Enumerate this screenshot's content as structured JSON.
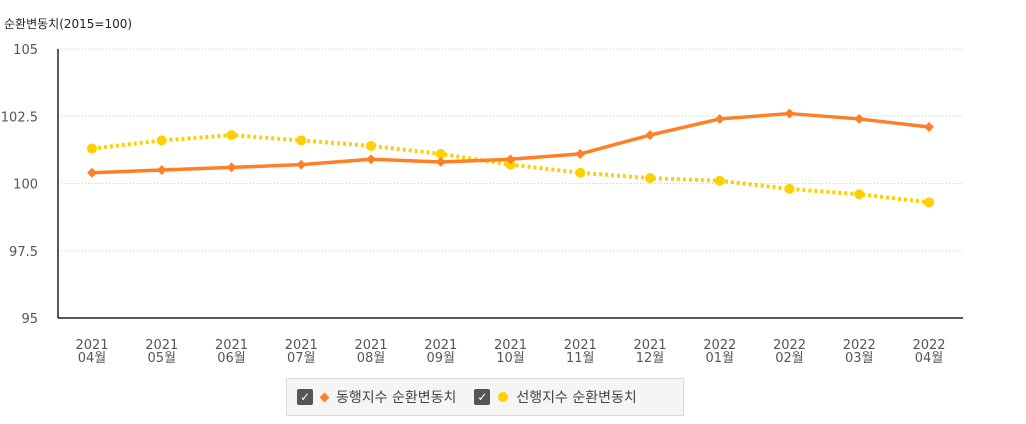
{
  "chart_data": {
    "type": "line",
    "ylabel": "순환변동치(2015=100)",
    "ylim": [
      95,
      105
    ],
    "yticks": [
      "105",
      "102.5",
      "100",
      "97.5",
      "95"
    ],
    "ytick_values": [
      105,
      102.5,
      100,
      97.5,
      95
    ],
    "grid": true,
    "legend_position": "bottom-center",
    "categories": [
      {
        "year": "2021",
        "month": "04월"
      },
      {
        "year": "2021",
        "month": "05월"
      },
      {
        "year": "2021",
        "month": "06월"
      },
      {
        "year": "2021",
        "month": "07월"
      },
      {
        "year": "2021",
        "month": "08월"
      },
      {
        "year": "2021",
        "month": "09월"
      },
      {
        "year": "2021",
        "month": "10월"
      },
      {
        "year": "2021",
        "month": "11월"
      },
      {
        "year": "2021",
        "month": "12월"
      },
      {
        "year": "2022",
        "month": "01월"
      },
      {
        "year": "2022",
        "month": "02월"
      },
      {
        "year": "2022",
        "month": "03월"
      },
      {
        "year": "2022",
        "month": "04월"
      }
    ],
    "series": [
      {
        "name": "동행지수 순환변동치",
        "color": "#ff7f27",
        "marker": "diamond-icon",
        "style": "solid",
        "values": [
          100.4,
          100.5,
          100.6,
          100.7,
          100.9,
          100.8,
          100.9,
          101.1,
          101.8,
          102.4,
          102.6,
          102.4,
          102.1
        ]
      },
      {
        "name": "선행지수 순환변동치",
        "color": "#ffd000",
        "marker": "circle-icon",
        "style": "dotted",
        "values": [
          101.3,
          101.6,
          101.8,
          101.6,
          101.4,
          101.1,
          100.7,
          100.4,
          100.2,
          100.1,
          99.8,
          99.6,
          99.3
        ]
      }
    ]
  },
  "legend": {
    "checked_glyph": "✓",
    "items": [
      {
        "label": "동행지수 순환변동치",
        "checked": true
      },
      {
        "label": "선행지수 순환변동치",
        "checked": true
      }
    ]
  }
}
